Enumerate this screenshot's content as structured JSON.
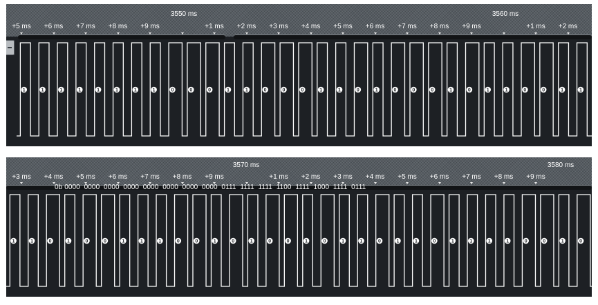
{
  "colors": {
    "background": "#1d2024",
    "ruler": "#565c62",
    "signal": "#ffffff",
    "scroll_track": "#121416"
  },
  "panel1": {
    "major_labels": [
      "3550 ms",
      "3560 ms"
    ],
    "tick_labels": [
      "+5 ms",
      "+6 ms",
      "+7 ms",
      "+8 ms",
      "+9 ms",
      "+1 ms",
      "+2 ms",
      "+3 ms",
      "+4 ms",
      "+5 ms",
      "+6 ms",
      "+7 ms",
      "+8 ms",
      "+9 ms",
      "+1 ms",
      "+2 ms"
    ],
    "bit_marks": [
      "1",
      "1",
      "1",
      "1",
      "1",
      "1",
      "1",
      "1",
      "0",
      "0",
      "0",
      "1",
      "1",
      "0",
      "0",
      "0",
      "1",
      "1",
      "0",
      "1",
      "0",
      "0",
      "0",
      "1",
      "0",
      "1",
      "1",
      "0",
      "0",
      "1",
      "1"
    ]
  },
  "panel2": {
    "major_labels": [
      "3570 ms",
      "3580 ms"
    ],
    "tick_labels": [
      "+3 ms",
      "+4 ms",
      "+5 ms",
      "+6 ms",
      "+7 ms",
      "+8 ms",
      "+9 ms",
      "+1 ms",
      "+2 ms",
      "+3 ms",
      "+4 ms",
      "+5 ms",
      "+6 ms",
      "+7 ms",
      "+8 ms",
      "+9 ms"
    ],
    "decoded_value": "0b 0000  0000  0000  0000  0000  0000  0000  0000  0111  1111  1111  1100  1111  1000  1111  0111",
    "bit_marks": [
      "1",
      "1",
      "0",
      "1",
      "0",
      "0",
      "1",
      "1",
      "1",
      "0",
      "0",
      "1",
      "0",
      "1",
      "0",
      "0",
      "1",
      "0",
      "1",
      "1",
      "0",
      "1",
      "1",
      "0",
      "1",
      "1",
      "1",
      "1",
      "0",
      "0",
      "1",
      "0"
    ]
  }
}
